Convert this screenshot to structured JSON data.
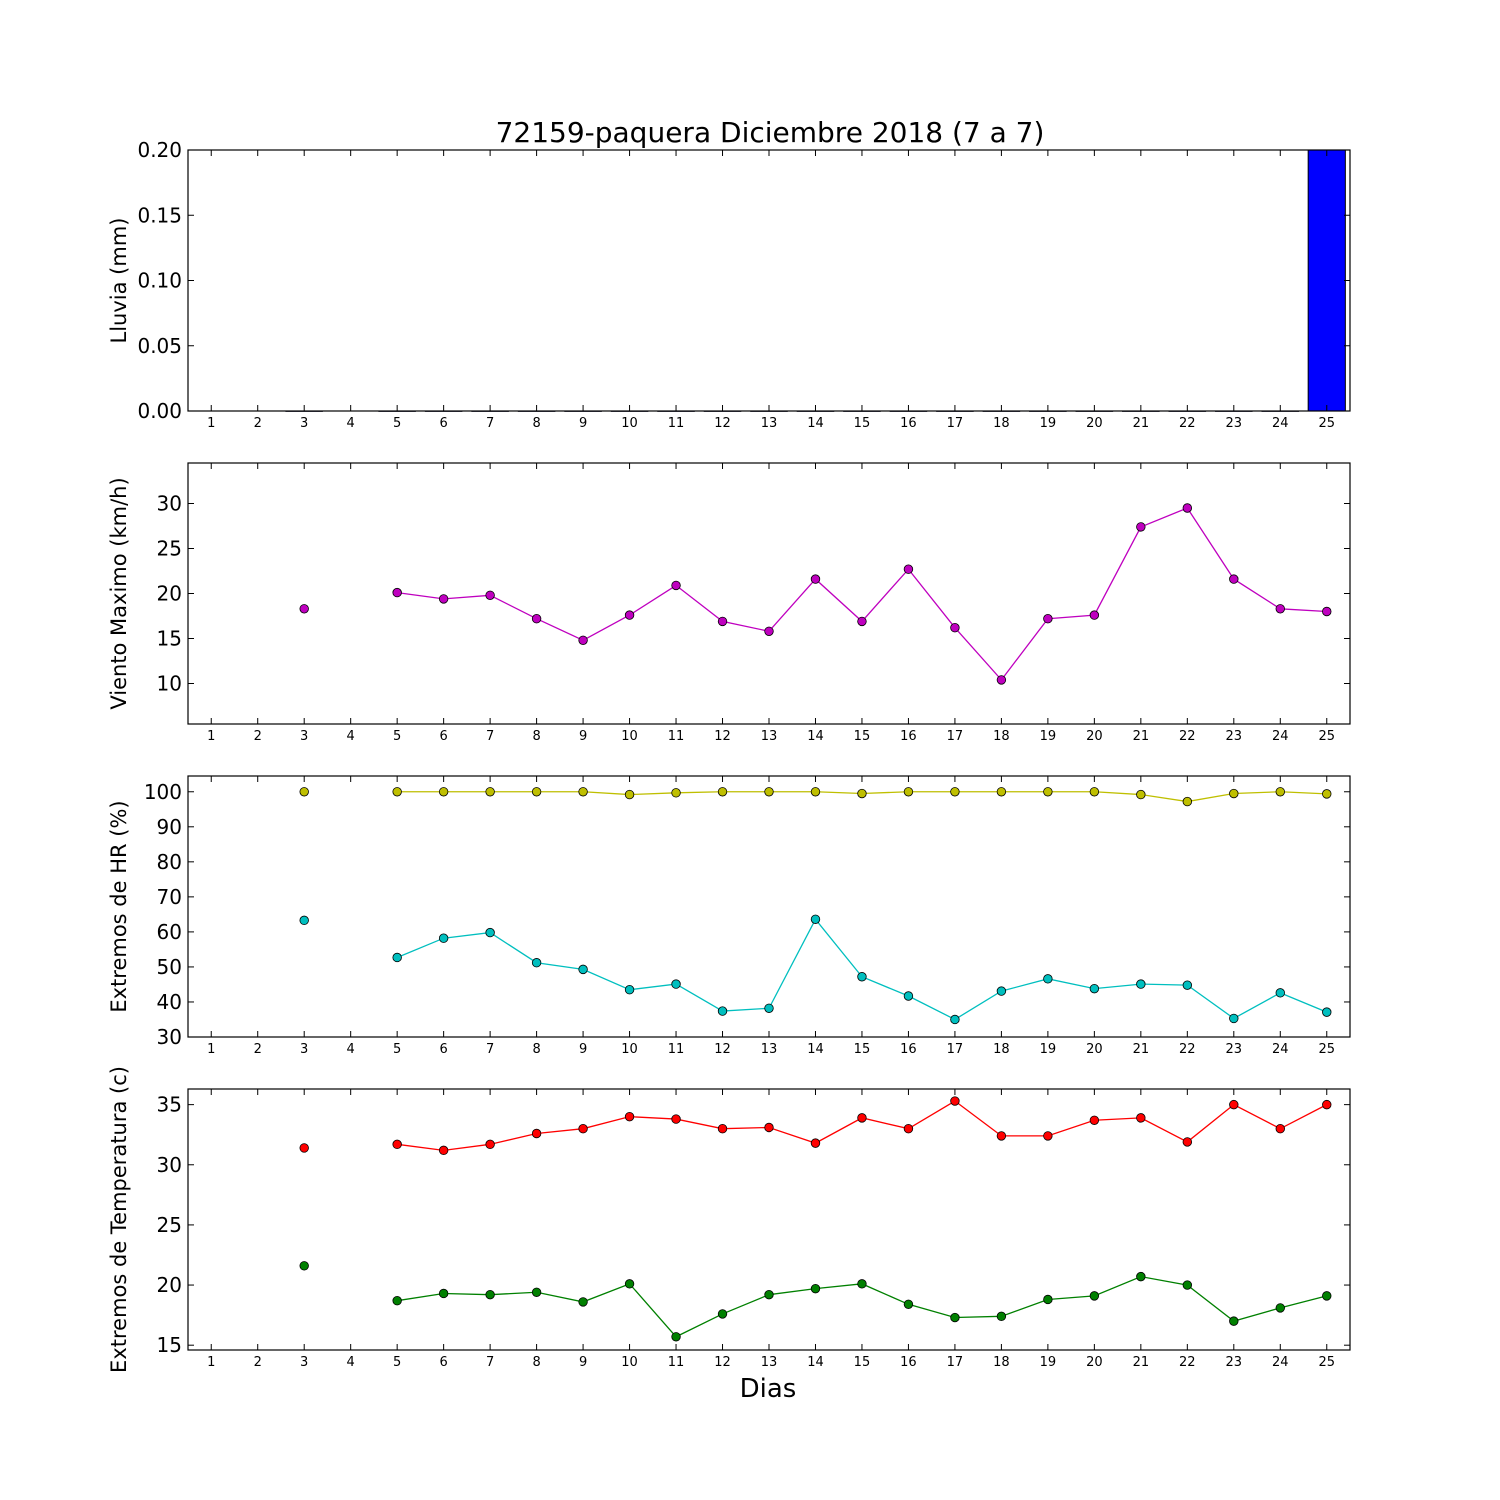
{
  "figure": {
    "title": "72159-paquera Diciembre 2018  (7 a 7)",
    "xlabel": "Dias"
  },
  "chart_data": [
    {
      "id": "rain",
      "type": "bar",
      "ylabel": "Lluvia (mm)",
      "x": [
        1,
        2,
        3,
        4,
        5,
        6,
        7,
        8,
        9,
        10,
        11,
        12,
        13,
        14,
        15,
        16,
        17,
        18,
        19,
        20,
        21,
        22,
        23,
        24,
        25
      ],
      "xlim": [
        0.5,
        25.5
      ],
      "ylim": [
        0,
        0.2
      ],
      "yticks": [
        0.0,
        0.05,
        0.1,
        0.15,
        0.2
      ],
      "ytick_labels": [
        "0.00",
        "0.05",
        "0.10",
        "0.15",
        "0.20"
      ],
      "series": [
        {
          "color": "#0000ff",
          "values": [
            null,
            null,
            0,
            null,
            0,
            0,
            0,
            0,
            0,
            0,
            0,
            0,
            0,
            0,
            0,
            0,
            0,
            0,
            0,
            0,
            0,
            0,
            0,
            0,
            0.2
          ]
        }
      ]
    },
    {
      "id": "wind",
      "type": "line",
      "ylabel": "Viento Maximo (km/h)",
      "x": [
        1,
        2,
        3,
        4,
        5,
        6,
        7,
        8,
        9,
        10,
        11,
        12,
        13,
        14,
        15,
        16,
        17,
        18,
        19,
        20,
        21,
        22,
        23,
        24,
        25
      ],
      "xlim": [
        0.5,
        25.5
      ],
      "ylim": [
        5.5,
        34.5
      ],
      "yticks": [
        10,
        15,
        20,
        25,
        30
      ],
      "ytick_labels": [
        "10",
        "15",
        "20",
        "25",
        "30"
      ],
      "series": [
        {
          "color": "#bf00bf",
          "values": [
            null,
            null,
            18.3,
            null,
            20.1,
            19.4,
            19.8,
            17.2,
            14.8,
            17.6,
            20.9,
            16.9,
            15.8,
            21.6,
            16.9,
            22.7,
            16.2,
            10.4,
            17.2,
            17.6,
            27.4,
            29.5,
            21.6,
            18.3,
            18.0
          ]
        }
      ]
    },
    {
      "id": "humidity",
      "type": "line",
      "ylabel": "Extremos de HR (%)",
      "x": [
        1,
        2,
        3,
        4,
        5,
        6,
        7,
        8,
        9,
        10,
        11,
        12,
        13,
        14,
        15,
        16,
        17,
        18,
        19,
        20,
        21,
        22,
        23,
        24,
        25
      ],
      "xlim": [
        0.5,
        25.5
      ],
      "ylim": [
        30,
        104.5
      ],
      "yticks": [
        30,
        40,
        50,
        60,
        70,
        80,
        90,
        100
      ],
      "ytick_labels": [
        "30",
        "40",
        "50",
        "60",
        "70",
        "80",
        "90",
        "100"
      ],
      "series": [
        {
          "color": "#bfbf00",
          "values": [
            null,
            null,
            100,
            null,
            100,
            100,
            100,
            100,
            100,
            99.2,
            99.7,
            100,
            100,
            100,
            99.5,
            100,
            100,
            100,
            100,
            100,
            99.2,
            97.2,
            99.5,
            100,
            99.4
          ]
        },
        {
          "color": "#00bfbf",
          "values": [
            null,
            null,
            63.3,
            null,
            52.7,
            58.2,
            59.8,
            51.2,
            49.3,
            43.5,
            45.1,
            37.4,
            38.2,
            63.6,
            47.2,
            41.7,
            35.0,
            43.1,
            46.6,
            43.8,
            45.1,
            44.8,
            35.3,
            42.6,
            37.1
          ]
        }
      ]
    },
    {
      "id": "temperature",
      "type": "line",
      "ylabel": "Extremos de Temperatura (c)",
      "x": [
        1,
        2,
        3,
        4,
        5,
        6,
        7,
        8,
        9,
        10,
        11,
        12,
        13,
        14,
        15,
        16,
        17,
        18,
        19,
        20,
        21,
        22,
        23,
        24,
        25
      ],
      "xlim": [
        0.5,
        25.5
      ],
      "ylim": [
        14.6,
        36.3
      ],
      "yticks": [
        15,
        20,
        25,
        30,
        35
      ],
      "ytick_labels": [
        "15",
        "20",
        "25",
        "30",
        "35"
      ],
      "series": [
        {
          "color": "#ff0000",
          "values": [
            null,
            null,
            31.4,
            null,
            31.7,
            31.2,
            31.7,
            32.6,
            33.0,
            34.0,
            33.8,
            33.0,
            33.1,
            31.8,
            33.9,
            33.0,
            35.3,
            32.4,
            32.4,
            33.7,
            33.9,
            31.9,
            35.0,
            33.0,
            35.0
          ]
        },
        {
          "color": "#008000",
          "values": [
            null,
            null,
            21.6,
            null,
            18.7,
            19.3,
            19.2,
            19.4,
            18.6,
            20.1,
            15.7,
            17.6,
            19.2,
            19.7,
            20.1,
            18.4,
            17.3,
            17.4,
            18.8,
            19.1,
            20.7,
            20.0,
            17.0,
            18.1,
            19.1
          ]
        }
      ]
    }
  ]
}
